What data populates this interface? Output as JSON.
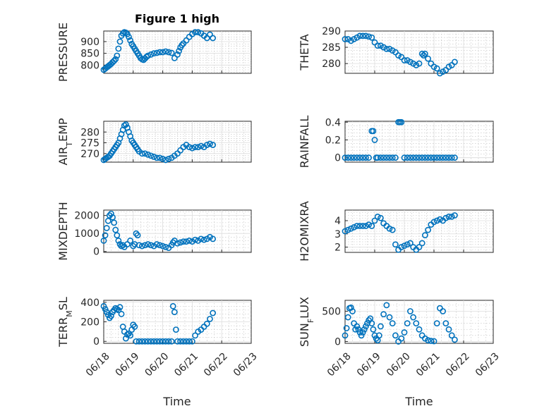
{
  "figure": {
    "title": "Figure 1 high",
    "xlabel": "Time",
    "marker_color": "#0072bd"
  },
  "chart_data": [
    {
      "type": "scatter",
      "name": "PRESSURE",
      "ylabel": "PRESSURE",
      "ylabel_parts": [
        {
          "text": "PRESSURE",
          "sub": false
        }
      ],
      "title": "Figure 1 high",
      "xlim": [
        0,
        5
      ],
      "ylim": [
        765,
        945
      ],
      "yticks": [
        800,
        850,
        900
      ],
      "xticklabels": [],
      "x": [
        0.0,
        0.05,
        0.1,
        0.15,
        0.2,
        0.25,
        0.3,
        0.35,
        0.4,
        0.45,
        0.5,
        0.55,
        0.6,
        0.65,
        0.7,
        0.75,
        0.8,
        0.85,
        0.9,
        0.95,
        1.0,
        1.05,
        1.1,
        1.15,
        1.2,
        1.25,
        1.3,
        1.35,
        1.4,
        1.45,
        1.5,
        1.6,
        1.7,
        1.8,
        1.9,
        2.0,
        2.1,
        2.2,
        2.3,
        2.4,
        2.5,
        2.55,
        2.6,
        2.65,
        2.7,
        2.8,
        2.9,
        3.0,
        3.1,
        3.2,
        3.3,
        3.4,
        3.5,
        3.6,
        3.7
      ],
      "y": [
        780,
        785,
        790,
        795,
        800,
        805,
        812,
        818,
        825,
        840,
        870,
        900,
        925,
        935,
        940,
        938,
        932,
        920,
        905,
        890,
        880,
        870,
        860,
        850,
        840,
        830,
        825,
        822,
        828,
        835,
        840,
        845,
        850,
        852,
        855,
        855,
        858,
        855,
        852,
        830,
        845,
        860,
        875,
        885,
        892,
        905,
        920,
        932,
        940,
        940,
        935,
        925,
        915,
        930,
        915
      ]
    },
    {
      "type": "scatter",
      "name": "THETA",
      "ylabel": "THETA",
      "ylabel_parts": [
        {
          "text": "THETA",
          "sub": false
        }
      ],
      "xlim": [
        0,
        5
      ],
      "ylim": [
        277,
        290
      ],
      "yticks": [
        280,
        285,
        290
      ],
      "xticklabels": [],
      "x": [
        0.0,
        0.1,
        0.2,
        0.3,
        0.4,
        0.5,
        0.6,
        0.7,
        0.8,
        0.9,
        1.0,
        1.1,
        1.2,
        1.3,
        1.4,
        1.5,
        1.6,
        1.7,
        1.8,
        1.9,
        2.0,
        2.1,
        2.2,
        2.3,
        2.4,
        2.5,
        2.6,
        2.65,
        2.7,
        2.8,
        2.9,
        3.0,
        3.1,
        3.2,
        3.3,
        3.4,
        3.5,
        3.6,
        3.7
      ],
      "y": [
        287.5,
        287.5,
        287,
        287.5,
        288,
        288.5,
        288.5,
        288.5,
        288.3,
        288,
        286.5,
        285.5,
        285.5,
        285,
        284.5,
        284.5,
        284,
        283.5,
        282.5,
        282,
        281,
        281,
        280.5,
        280,
        279.5,
        280,
        283,
        282.5,
        283,
        281.5,
        280,
        279,
        278.5,
        277,
        277.5,
        278,
        279,
        279.5,
        280.5
      ]
    },
    {
      "type": "scatter",
      "name": "AIR_TEMP",
      "ylabel": "AIR_TEMP",
      "ylabel_parts": [
        {
          "text": "AIR",
          "sub": false
        },
        {
          "text": "T",
          "sub": true
        },
        {
          "text": "EMP",
          "sub": false
        }
      ],
      "xlim": [
        0,
        5
      ],
      "ylim": [
        266,
        285
      ],
      "yticks": [
        270,
        275,
        280
      ],
      "xticklabels": [],
      "x": [
        0.0,
        0.05,
        0.1,
        0.15,
        0.2,
        0.25,
        0.3,
        0.35,
        0.4,
        0.45,
        0.5,
        0.55,
        0.6,
        0.65,
        0.7,
        0.75,
        0.8,
        0.85,
        0.9,
        0.95,
        1.0,
        1.05,
        1.1,
        1.15,
        1.2,
        1.3,
        1.4,
        1.5,
        1.6,
        1.7,
        1.8,
        1.9,
        2.0,
        2.1,
        2.2,
        2.3,
        2.4,
        2.5,
        2.6,
        2.7,
        2.8,
        2.9,
        3.0,
        3.1,
        3.2,
        3.3,
        3.4,
        3.5,
        3.6,
        3.7
      ],
      "y": [
        267,
        267.5,
        268,
        268.5,
        269,
        270,
        271,
        272,
        273,
        274,
        275,
        277,
        279,
        281,
        283,
        283.5,
        282,
        280,
        278,
        276,
        275,
        274,
        273,
        272,
        271,
        270,
        270,
        269.5,
        269,
        268.5,
        268,
        268,
        267.5,
        267,
        267.5,
        268,
        269,
        270,
        271.5,
        273,
        274,
        273,
        272.5,
        273,
        273,
        273.5,
        273,
        274,
        274.5,
        274
      ]
    },
    {
      "type": "scatter",
      "name": "RAINFALL",
      "ylabel": "RAINFALL",
      "ylabel_parts": [
        {
          "text": "RAINFALL",
          "sub": false
        }
      ],
      "xlim": [
        0,
        5
      ],
      "ylim": [
        -0.05,
        0.41
      ],
      "yticks": [
        0,
        0.2,
        0.4
      ],
      "xticklabels": [],
      "x": [
        0.0,
        0.1,
        0.2,
        0.3,
        0.4,
        0.5,
        0.6,
        0.7,
        0.8,
        0.9,
        0.95,
        1.0,
        1.05,
        1.1,
        1.2,
        1.3,
        1.4,
        1.5,
        1.6,
        1.7,
        1.8,
        1.85,
        1.9,
        2.0,
        2.1,
        2.2,
        2.3,
        2.4,
        2.5,
        2.6,
        2.7,
        2.8,
        2.9,
        3.0,
        3.1,
        3.2,
        3.3,
        3.4,
        3.5,
        3.6,
        3.7
      ],
      "y": [
        0,
        0,
        0,
        0,
        0,
        0,
        0,
        0,
        0,
        0.3,
        0.3,
        0.2,
        0,
        0,
        0,
        0,
        0,
        0,
        0,
        0,
        0.4,
        0.4,
        0.4,
        0,
        0,
        0,
        0,
        0,
        0,
        0,
        0,
        0,
        0,
        0,
        0,
        0,
        0,
        0,
        0,
        0,
        0
      ]
    },
    {
      "type": "scatter",
      "name": "MIXDEPTH",
      "ylabel": "MIXDEPTH",
      "ylabel_parts": [
        {
          "text": "MIXDEPTH",
          "sub": false
        }
      ],
      "xlim": [
        0,
        5
      ],
      "ylim": [
        -50,
        2300
      ],
      "yticks": [
        0,
        1000,
        2000
      ],
      "xticklabels": [],
      "x": [
        0.0,
        0.05,
        0.1,
        0.15,
        0.2,
        0.25,
        0.3,
        0.35,
        0.4,
        0.45,
        0.5,
        0.55,
        0.6,
        0.65,
        0.7,
        0.8,
        0.9,
        1.0,
        1.05,
        1.1,
        1.15,
        1.2,
        1.3,
        1.4,
        1.5,
        1.6,
        1.7,
        1.8,
        1.9,
        2.0,
        2.1,
        2.2,
        2.3,
        2.35,
        2.4,
        2.5,
        2.6,
        2.7,
        2.8,
        2.9,
        3.0,
        3.1,
        3.2,
        3.3,
        3.4,
        3.5,
        3.6,
        3.7
      ],
      "y": [
        600,
        900,
        1300,
        1700,
        2000,
        2100,
        1900,
        1600,
        1200,
        900,
        600,
        400,
        300,
        350,
        250,
        400,
        600,
        300,
        400,
        1000,
        900,
        350,
        300,
        350,
        400,
        350,
        300,
        400,
        350,
        300,
        250,
        200,
        350,
        500,
        600,
        450,
        500,
        550,
        550,
        600,
        550,
        650,
        600,
        700,
        650,
        700,
        800,
        700
      ]
    },
    {
      "type": "scatter",
      "name": "H2OMIXRA",
      "ylabel": "H2OMIXRA",
      "ylabel_parts": [
        {
          "text": "H2OMIXRA",
          "sub": false
        }
      ],
      "xlim": [
        0,
        5
      ],
      "ylim": [
        1.6,
        4.8
      ],
      "yticks": [
        2,
        3,
        4
      ],
      "xticklabels": [],
      "x": [
        0.0,
        0.1,
        0.2,
        0.3,
        0.4,
        0.5,
        0.6,
        0.7,
        0.8,
        0.9,
        1.0,
        1.1,
        1.2,
        1.3,
        1.4,
        1.5,
        1.6,
        1.7,
        1.8,
        1.9,
        2.0,
        2.1,
        2.2,
        2.3,
        2.4,
        2.5,
        2.6,
        2.7,
        2.8,
        2.9,
        3.0,
        3.1,
        3.2,
        3.3,
        3.4,
        3.5,
        3.6,
        3.7
      ],
      "y": [
        3.2,
        3.3,
        3.4,
        3.5,
        3.6,
        3.6,
        3.6,
        3.6,
        3.7,
        3.6,
        4.0,
        4.3,
        4.2,
        3.8,
        3.6,
        3.4,
        3.3,
        2.2,
        1.8,
        2.0,
        2.1,
        2.2,
        2.3,
        2.0,
        1.8,
        2.0,
        2.3,
        2.9,
        3.3,
        3.7,
        3.9,
        4.0,
        4.1,
        4.0,
        4.2,
        4.3,
        4.3,
        4.4
      ]
    },
    {
      "type": "scatter",
      "name": "TERR_MSL",
      "ylabel": "TERR_MSL",
      "ylabel_parts": [
        {
          "text": "TERR",
          "sub": false
        },
        {
          "text": "M",
          "sub": true
        },
        {
          "text": "SL",
          "sub": false
        }
      ],
      "xlim": [
        0,
        5
      ],
      "ylim": [
        -20,
        420
      ],
      "yticks": [
        0,
        200,
        400
      ],
      "xticklabels": [
        "06/18",
        "06/19",
        "06/20",
        "06/21",
        "06/22",
        "06/23"
      ],
      "x": [
        0.0,
        0.05,
        0.1,
        0.15,
        0.2,
        0.25,
        0.3,
        0.35,
        0.4,
        0.45,
        0.5,
        0.55,
        0.6,
        0.65,
        0.7,
        0.75,
        0.8,
        0.85,
        0.9,
        0.95,
        1.0,
        1.05,
        1.1,
        1.2,
        1.3,
        1.4,
        1.5,
        1.6,
        1.7,
        1.8,
        1.9,
        2.0,
        2.1,
        2.2,
        2.3,
        2.35,
        2.4,
        2.45,
        2.5,
        2.6,
        2.7,
        2.8,
        2.9,
        3.0,
        3.1,
        3.2,
        3.3,
        3.4,
        3.5,
        3.6,
        3.7
      ],
      "y": [
        360,
        330,
        300,
        270,
        240,
        260,
        300,
        320,
        340,
        330,
        320,
        350,
        280,
        150,
        100,
        30,
        70,
        80,
        60,
        120,
        170,
        150,
        0,
        0,
        0,
        0,
        0,
        0,
        0,
        0,
        0,
        0,
        0,
        0,
        0,
        360,
        300,
        120,
        0,
        0,
        0,
        0,
        0,
        0,
        60,
        100,
        120,
        150,
        180,
        230,
        290
      ]
    },
    {
      "type": "scatter",
      "name": "SUN_FLUX",
      "ylabel": "SUN_FLUX",
      "ylabel_parts": [
        {
          "text": "SUN",
          "sub": false
        },
        {
          "text": "F",
          "sub": true
        },
        {
          "text": "LUX",
          "sub": false
        }
      ],
      "xlim": [
        0,
        5
      ],
      "ylim": [
        -30,
        680
      ],
      "yticks": [
        0,
        500
      ],
      "xticklabels": [
        "06/18",
        "06/19",
        "06/20",
        "06/21",
        "06/22",
        "06/23"
      ],
      "x": [
        0.0,
        0.05,
        0.1,
        0.15,
        0.2,
        0.25,
        0.3,
        0.35,
        0.4,
        0.45,
        0.5,
        0.55,
        0.6,
        0.65,
        0.7,
        0.75,
        0.8,
        0.85,
        0.9,
        0.95,
        1.0,
        1.05,
        1.1,
        1.15,
        1.2,
        1.3,
        1.4,
        1.5,
        1.6,
        1.7,
        1.8,
        1.9,
        2.0,
        2.1,
        2.2,
        2.3,
        2.4,
        2.5,
        2.6,
        2.7,
        2.8,
        2.9,
        3.0,
        3.1,
        3.2,
        3.3,
        3.4,
        3.5,
        3.6,
        3.7
      ],
      "y": [
        100,
        220,
        400,
        550,
        560,
        500,
        300,
        200,
        250,
        200,
        150,
        100,
        150,
        200,
        250,
        300,
        350,
        380,
        300,
        200,
        100,
        50,
        20,
        100,
        250,
        450,
        600,
        400,
        300,
        100,
        0,
        50,
        150,
        300,
        500,
        400,
        300,
        200,
        100,
        50,
        20,
        10,
        5,
        300,
        550,
        500,
        300,
        200,
        100,
        30
      ]
    }
  ]
}
